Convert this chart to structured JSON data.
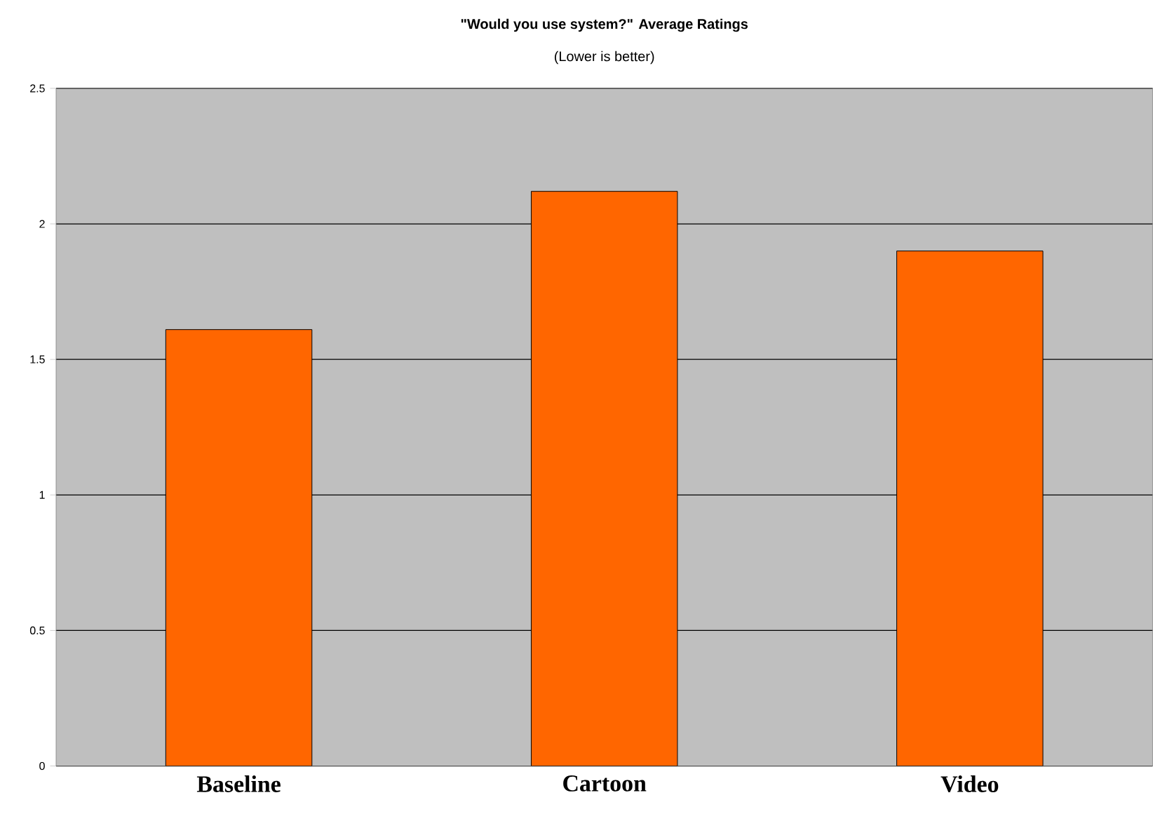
{
  "chart_data": {
    "type": "bar",
    "title": "\"Would you use system?\" Average Ratings",
    "subtitle": "(Lower is better)",
    "categories": [
      "Baseline",
      "Cartoon",
      "Video"
    ],
    "values": [
      1.61,
      2.12,
      1.9
    ],
    "color": "#ff6600",
    "ylim": [
      0,
      2.5
    ],
    "yticks": [
      0,
      0.5,
      1,
      1.5,
      2,
      2.5
    ],
    "grid": "y"
  }
}
